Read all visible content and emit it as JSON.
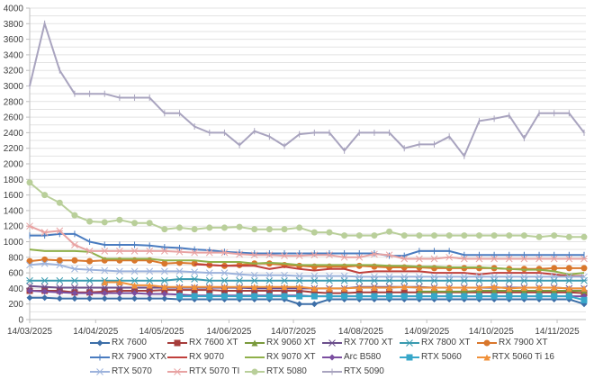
{
  "chart_data": {
    "type": "line",
    "title": "",
    "xlabel": "",
    "ylabel": "",
    "ylim": [
      0,
      4000
    ],
    "yticks": [
      0,
      200,
      400,
      600,
      800,
      1000,
      1200,
      1400,
      1600,
      1800,
      2000,
      2200,
      2400,
      2600,
      2800,
      3000,
      3200,
      3400,
      3600,
      3800,
      4000
    ],
    "grid": true,
    "minor_grid_step": 100,
    "legend_position": "bottom",
    "xtick_labels": [
      "14/03/2025",
      "14/04/2025",
      "14/05/2025",
      "14/06/2025",
      "14/07/2025",
      "14/08/2025",
      "14/09/2025",
      "14/10/2025",
      "14/11/2025"
    ],
    "xtick_indices": [
      0,
      4.4,
      8.8,
      13.3,
      17.6,
      22.1,
      26.5,
      30.8,
      35.2
    ],
    "num_points": 38,
    "series": [
      {
        "name": "RX 7600",
        "color": "#3d6fa8",
        "marker": "diamond",
        "values": [
          280,
          280,
          270,
          270,
          270,
          270,
          270,
          270,
          270,
          270,
          260,
          260,
          260,
          260,
          260,
          260,
          260,
          260,
          200,
          200,
          260,
          260,
          260,
          260,
          260,
          260,
          260,
          260,
          260,
          260,
          260,
          260,
          260,
          260,
          260,
          260,
          260,
          200
        ]
      },
      {
        "name": "RX 7600 XT",
        "color": "#a63d3b",
        "marker": "square",
        "values": [
          370,
          370,
          370,
          350,
          350,
          360,
          370,
          370,
          370,
          380,
          380,
          380,
          380,
          370,
          370,
          370,
          370,
          370,
          370,
          350,
          340,
          340,
          350,
          350,
          350,
          350,
          350,
          350,
          350,
          350,
          350,
          350,
          350,
          350,
          350,
          350,
          350,
          340
        ]
      },
      {
        "name": "RX 9060 XT",
        "color": "#7a9a3c",
        "marker": "triangle",
        "values": [
          null,
          null,
          null,
          null,
          null,
          null,
          null,
          null,
          null,
          null,
          null,
          null,
          null,
          null,
          null,
          null,
          null,
          null,
          null,
          null,
          null,
          null,
          null,
          null,
          null,
          null,
          360,
          360,
          360,
          360,
          370,
          370,
          370,
          370,
          370,
          370,
          370,
          370
        ]
      },
      {
        "name": "RX 7700 XT",
        "color": "#6b4f8c",
        "marker": "x",
        "values": [
          430,
          420,
          410,
          410,
          410,
          410,
          410,
          410,
          410,
          410,
          410,
          410,
          410,
          410,
          410,
          400,
          400,
          400,
          400,
          400,
          400,
          400,
          420,
          420,
          420,
          420,
          420,
          410,
          410,
          410,
          410,
          410,
          410,
          410,
          410,
          410,
          400,
          400
        ]
      },
      {
        "name": "RX 7800 XT",
        "color": "#3a9bb0",
        "marker": "asterisk",
        "values": [
          500,
          500,
          500,
          500,
          500,
          500,
          500,
          500,
          500,
          500,
          520,
          520,
          500,
          500,
          500,
          500,
          500,
          500,
          500,
          500,
          500,
          500,
          500,
          500,
          500,
          500,
          500,
          500,
          500,
          500,
          500,
          500,
          500,
          500,
          500,
          500,
          500,
          500
        ]
      },
      {
        "name": "RX 7900 XT",
        "color": "#d9772c",
        "marker": "circle",
        "values": [
          750,
          770,
          760,
          760,
          750,
          760,
          760,
          760,
          760,
          720,
          730,
          720,
          700,
          690,
          700,
          720,
          720,
          700,
          690,
          680,
          680,
          680,
          690,
          680,
          670,
          670,
          670,
          660,
          660,
          660,
          660,
          660,
          650,
          650,
          650,
          660,
          660,
          660
        ]
      },
      {
        "name": "RX 7900 XTX",
        "color": "#4a7cc0",
        "marker": "plus",
        "values": [
          1080,
          1080,
          1100,
          1100,
          1000,
          960,
          960,
          960,
          950,
          930,
          920,
          900,
          890,
          870,
          860,
          850,
          850,
          850,
          850,
          850,
          850,
          850,
          850,
          850,
          820,
          820,
          880,
          880,
          880,
          830,
          830,
          830,
          830,
          830,
          830,
          830,
          830,
          830
        ]
      },
      {
        "name": "RX 9070",
        "color": "#c0403c",
        "marker": "none",
        "values": [
          null,
          null,
          null,
          null,
          null,
          null,
          null,
          null,
          null,
          null,
          null,
          710,
          700,
          690,
          690,
          690,
          650,
          680,
          650,
          630,
          650,
          650,
          600,
          620,
          620,
          620,
          620,
          600,
          600,
          600,
          580,
          600,
          600,
          600,
          600,
          580,
          560,
          560
        ]
      },
      {
        "name": "RX 9070 XT",
        "color": "#8fb04a",
        "marker": "none",
        "values": [
          900,
          880,
          880,
          880,
          870,
          780,
          780,
          780,
          780,
          760,
          760,
          760,
          740,
          740,
          740,
          720,
          730,
          720,
          700,
          700,
          700,
          700,
          700,
          700,
          690,
          690,
          680,
          680,
          670,
          670,
          670,
          660,
          650,
          640,
          640,
          620,
          580,
          600
        ]
      },
      {
        "name": "Arc B580",
        "color": "#7b4ea0",
        "marker": "diamond",
        "values": [
          370,
          360,
          350,
          340,
          340,
          340,
          340,
          340,
          330,
          330,
          320,
          310,
          310,
          310,
          310,
          310,
          310,
          310,
          310,
          300,
          300,
          300,
          300,
          300,
          300,
          300,
          300,
          300,
          300,
          300,
          300,
          300,
          300,
          300,
          300,
          300,
          300,
          300
        ]
      },
      {
        "name": "RTX 5060",
        "color": "#38a7c9",
        "marker": "square",
        "values": [
          null,
          null,
          null,
          null,
          null,
          null,
          null,
          null,
          null,
          null,
          300,
          300,
          300,
          300,
          300,
          300,
          300,
          300,
          300,
          300,
          300,
          300,
          300,
          300,
          300,
          300,
          300,
          300,
          300,
          300,
          300,
          300,
          300,
          300,
          300,
          300,
          300,
          250
        ]
      },
      {
        "name": "RTX 5060 Ti 16",
        "color": "#f0913a",
        "marker": "triangle",
        "values": [
          null,
          null,
          null,
          null,
          null,
          480,
          480,
          440,
          440,
          420,
          420,
          420,
          420,
          420,
          420,
          420,
          420,
          420,
          420,
          400,
          400,
          400,
          410,
          410,
          410,
          420,
          410,
          410,
          410,
          410,
          410,
          420,
          400,
          410,
          410,
          410,
          400,
          400
        ]
      },
      {
        "name": "RTX 5070",
        "color": "#9db3dc",
        "marker": "x",
        "values": [
          700,
          720,
          700,
          650,
          640,
          630,
          620,
          620,
          620,
          620,
          620,
          610,
          600,
          600,
          580,
          570,
          570,
          570,
          560,
          560,
          560,
          560,
          550,
          550,
          550,
          550,
          550,
          550,
          550,
          550,
          550,
          550,
          550,
          550,
          550,
          550,
          550,
          550
        ]
      },
      {
        "name": "RTX 5070 TI",
        "color": "#e8a3a3",
        "marker": "asterisk",
        "values": [
          1200,
          1120,
          1140,
          960,
          880,
          880,
          880,
          880,
          880,
          880,
          870,
          860,
          860,
          860,
          840,
          830,
          830,
          820,
          820,
          830,
          830,
          800,
          800,
          840,
          830,
          780,
          780,
          780,
          800,
          780,
          780,
          780,
          780,
          780,
          780,
          780,
          780,
          780
        ]
      },
      {
        "name": "RTX 5080",
        "color": "#b9cf9a",
        "marker": "circle",
        "values": [
          1760,
          1600,
          1500,
          1340,
          1260,
          1250,
          1280,
          1240,
          1240,
          1160,
          1180,
          1160,
          1180,
          1180,
          1190,
          1160,
          1160,
          1160,
          1180,
          1120,
          1120,
          1080,
          1080,
          1080,
          1130,
          1080,
          1080,
          1080,
          1080,
          1080,
          1080,
          1080,
          1080,
          1080,
          1060,
          1080,
          1060,
          1060
        ]
      },
      {
        "name": "RTX 5090",
        "color": "#a9a4bf",
        "marker": "plus",
        "values": [
          3000,
          3800,
          3200,
          2900,
          2900,
          2900,
          2850,
          2850,
          2850,
          2650,
          2650,
          2480,
          2400,
          2400,
          2240,
          2420,
          2350,
          2230,
          2380,
          2400,
          2400,
          2170,
          2400,
          2400,
          2400,
          2200,
          2250,
          2250,
          2350,
          2100,
          2550,
          2580,
          2620,
          2330,
          2650,
          2650,
          2650,
          2400
        ]
      }
    ]
  }
}
